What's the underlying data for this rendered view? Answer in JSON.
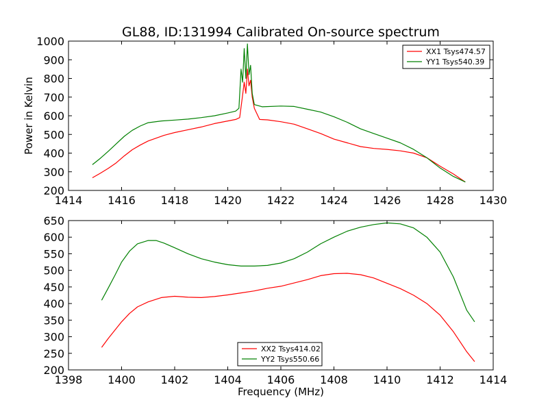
{
  "chart_data": [
    {
      "type": "line",
      "title": "GL88, ID:131994 Calibrated On-source spectrum",
      "xlabel": "",
      "ylabel": "Power in Kelvin",
      "xlim": [
        1414,
        1430
      ],
      "ylim": [
        200,
        1000
      ],
      "xticks": [
        "1414",
        "1416",
        "1418",
        "1420",
        "1422",
        "1424",
        "1426",
        "1428",
        "1430"
      ],
      "yticks": [
        "200",
        "300",
        "400",
        "500",
        "600",
        "700",
        "800",
        "900",
        "1000"
      ],
      "grid": false,
      "legend_position": "top-right",
      "series": [
        {
          "name": "XX1 Tsys474.57",
          "color": "#ff0000",
          "points": [
            [
              1414.9,
              268
            ],
            [
              1415.2,
              292
            ],
            [
              1415.5,
              318
            ],
            [
              1415.8,
              348
            ],
            [
              1416.1,
              385
            ],
            [
              1416.4,
              418
            ],
            [
              1416.7,
              443
            ],
            [
              1417.0,
              465
            ],
            [
              1417.3,
              480
            ],
            [
              1417.6,
              495
            ],
            [
              1418.0,
              510
            ],
            [
              1418.5,
              525
            ],
            [
              1419.0,
              540
            ],
            [
              1419.5,
              558
            ],
            [
              1420.0,
              572
            ],
            [
              1420.3,
              580
            ],
            [
              1420.45,
              590
            ],
            [
              1420.55,
              700
            ],
            [
              1420.62,
              780
            ],
            [
              1420.68,
              720
            ],
            [
              1420.74,
              850
            ],
            [
              1420.8,
              760
            ],
            [
              1420.86,
              790
            ],
            [
              1420.92,
              700
            ],
            [
              1421.0,
              640
            ],
            [
              1421.2,
              580
            ],
            [
              1421.5,
              578
            ],
            [
              1422.0,
              568
            ],
            [
              1422.5,
              555
            ],
            [
              1423.0,
              530
            ],
            [
              1423.5,
              505
            ],
            [
              1424.0,
              475
            ],
            [
              1424.5,
              455
            ],
            [
              1425.0,
              435
            ],
            [
              1425.5,
              425
            ],
            [
              1426.0,
              420
            ],
            [
              1426.5,
              412
            ],
            [
              1427.0,
              400
            ],
            [
              1427.5,
              375
            ],
            [
              1428.0,
              330
            ],
            [
              1428.5,
              288
            ],
            [
              1428.95,
              245
            ]
          ]
        },
        {
          "name": "YY1 Tsys540.39",
          "color": "#008000",
          "points": [
            [
              1414.9,
              338
            ],
            [
              1415.2,
              372
            ],
            [
              1415.5,
              410
            ],
            [
              1415.8,
              450
            ],
            [
              1416.1,
              490
            ],
            [
              1416.4,
              522
            ],
            [
              1416.7,
              545
            ],
            [
              1417.0,
              563
            ],
            [
              1417.5,
              572
            ],
            [
              1418.0,
              577
            ],
            [
              1418.5,
              582
            ],
            [
              1419.0,
              590
            ],
            [
              1419.5,
              600
            ],
            [
              1420.0,
              615
            ],
            [
              1420.3,
              625
            ],
            [
              1420.42,
              640
            ],
            [
              1420.5,
              850
            ],
            [
              1420.56,
              780
            ],
            [
              1420.62,
              960
            ],
            [
              1420.68,
              800
            ],
            [
              1420.74,
              985
            ],
            [
              1420.8,
              820
            ],
            [
              1420.86,
              870
            ],
            [
              1420.92,
              720
            ],
            [
              1421.0,
              660
            ],
            [
              1421.3,
              648
            ],
            [
              1422.0,
              652
            ],
            [
              1422.5,
              650
            ],
            [
              1423.0,
              635
            ],
            [
              1423.5,
              620
            ],
            [
              1424.0,
              595
            ],
            [
              1424.5,
              565
            ],
            [
              1425.0,
              530
            ],
            [
              1425.5,
              505
            ],
            [
              1426.0,
              480
            ],
            [
              1426.5,
              455
            ],
            [
              1427.0,
              420
            ],
            [
              1427.5,
              375
            ],
            [
              1428.0,
              320
            ],
            [
              1428.5,
              275
            ],
            [
              1428.95,
              245
            ]
          ]
        }
      ]
    },
    {
      "type": "line",
      "title": "",
      "xlabel": "Frequency (MHz)",
      "ylabel": "",
      "xlim": [
        1398,
        1414
      ],
      "ylim": [
        200,
        650
      ],
      "xticks": [
        "1398",
        "1400",
        "1402",
        "1404",
        "1406",
        "1408",
        "1410",
        "1412",
        "1414"
      ],
      "yticks": [
        "200",
        "250",
        "300",
        "350",
        "400",
        "450",
        "500",
        "550",
        "600",
        "650"
      ],
      "grid": false,
      "legend_position": "bottom-center",
      "series": [
        {
          "name": "XX2 Tsys414.02",
          "color": "#ff0000",
          "points": [
            [
              1399.25,
              268
            ],
            [
              1399.5,
              295
            ],
            [
              1399.75,
              320
            ],
            [
              1400.0,
              345
            ],
            [
              1400.3,
              370
            ],
            [
              1400.6,
              390
            ],
            [
              1401.0,
              405
            ],
            [
              1401.5,
              418
            ],
            [
              1402.0,
              422
            ],
            [
              1402.5,
              419
            ],
            [
              1403.0,
              418
            ],
            [
              1403.5,
              421
            ],
            [
              1404.0,
              426
            ],
            [
              1404.5,
              432
            ],
            [
              1405.0,
              438
            ],
            [
              1405.5,
              446
            ],
            [
              1406.0,
              452
            ],
            [
              1406.5,
              462
            ],
            [
              1407.0,
              472
            ],
            [
              1407.5,
              484
            ],
            [
              1408.0,
              490
            ],
            [
              1408.5,
              491
            ],
            [
              1409.0,
              487
            ],
            [
              1409.5,
              477
            ],
            [
              1410.0,
              461
            ],
            [
              1410.5,
              445
            ],
            [
              1411.0,
              425
            ],
            [
              1411.5,
              400
            ],
            [
              1412.0,
              365
            ],
            [
              1412.5,
              315
            ],
            [
              1413.0,
              255
            ],
            [
              1413.3,
              225
            ]
          ]
        },
        {
          "name": "YY2 Tsys550.66",
          "color": "#008000",
          "points": [
            [
              1399.25,
              410
            ],
            [
              1399.5,
              447
            ],
            [
              1399.75,
              485
            ],
            [
              1400.0,
              525
            ],
            [
              1400.3,
              558
            ],
            [
              1400.6,
              580
            ],
            [
              1401.0,
              590
            ],
            [
              1401.3,
              590
            ],
            [
              1401.6,
              582
            ],
            [
              1402.0,
              568
            ],
            [
              1402.5,
              550
            ],
            [
              1403.0,
              535
            ],
            [
              1403.5,
              525
            ],
            [
              1404.0,
              517
            ],
            [
              1404.5,
              513
            ],
            [
              1405.0,
              513
            ],
            [
              1405.5,
              515
            ],
            [
              1406.0,
              522
            ],
            [
              1406.5,
              535
            ],
            [
              1407.0,
              555
            ],
            [
              1407.5,
              580
            ],
            [
              1408.0,
              600
            ],
            [
              1408.5,
              618
            ],
            [
              1409.0,
              630
            ],
            [
              1409.5,
              638
            ],
            [
              1410.0,
              643
            ],
            [
              1410.5,
              640
            ],
            [
              1411.0,
              628
            ],
            [
              1411.5,
              600
            ],
            [
              1412.0,
              555
            ],
            [
              1412.5,
              480
            ],
            [
              1413.0,
              380
            ],
            [
              1413.3,
              345
            ]
          ]
        }
      ]
    }
  ]
}
